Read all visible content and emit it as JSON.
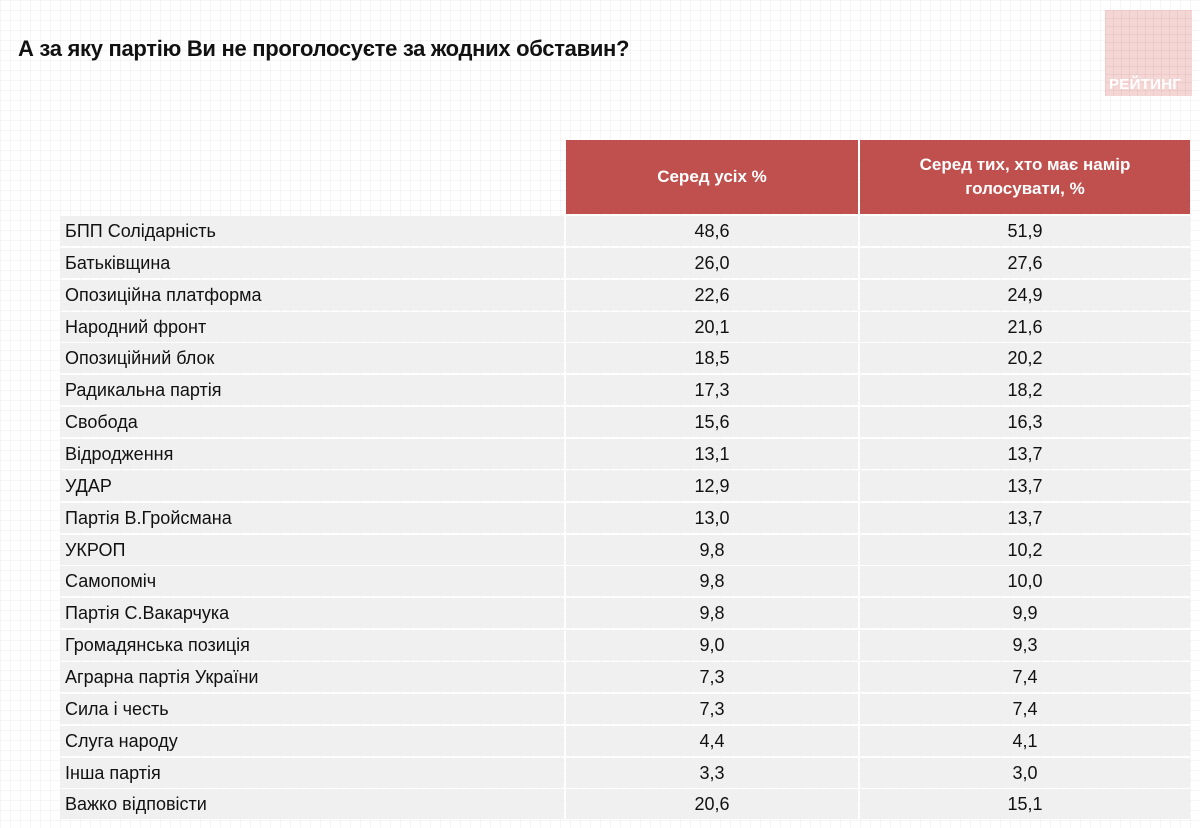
{
  "header": {
    "title": "А за яку партію Ви не проголосуєте за жодних обставин?",
    "logo_text": "РЕЙТИНГ"
  },
  "colors": {
    "header_bg": "#c0504d",
    "row_bg": "#f0f0f0",
    "logo_bg": "#f4d6d5"
  },
  "table": {
    "columns": [
      {
        "label": ""
      },
      {
        "label": "Серед усіх %"
      },
      {
        "label": "Серед тих, хто має намір голосувати, %"
      }
    ],
    "rows": [
      {
        "party": "БПП Солідарність",
        "all": "48,6",
        "voters": "51,9"
      },
      {
        "party": "Батьківщина",
        "all": "26,0",
        "voters": "27,6"
      },
      {
        "party": "Опозиційна платформа",
        "all": "22,6",
        "voters": "24,9"
      },
      {
        "party": "Народний фронт",
        "all": "20,1",
        "voters": "21,6"
      },
      {
        "party": "Опозиційний блок",
        "all": "18,5",
        "voters": "20,2"
      },
      {
        "party": "Радикальна партія",
        "all": "17,3",
        "voters": "18,2"
      },
      {
        "party": "Свобода",
        "all": "15,6",
        "voters": "16,3"
      },
      {
        "party": "Відродження",
        "all": "13,1",
        "voters": "13,7"
      },
      {
        "party": "УДАР",
        "all": "12,9",
        "voters": "13,7"
      },
      {
        "party": "Партія В.Гройсмана",
        "all": "13,0",
        "voters": "13,7"
      },
      {
        "party": "УКРОП",
        "all": "9,8",
        "voters": "10,2"
      },
      {
        "party": "Самопоміч",
        "all": "9,8",
        "voters": "10,0"
      },
      {
        "party": "Партія С.Вакарчука",
        "all": "9,8",
        "voters": "9,9"
      },
      {
        "party": "Громадянська позиція",
        "all": "9,0",
        "voters": "9,3"
      },
      {
        "party": "Аграрна партія України",
        "all": "7,3",
        "voters": "7,4"
      },
      {
        "party": "Сила і честь",
        "all": "7,3",
        "voters": "7,4"
      },
      {
        "party": "Слуга народу",
        "all": "4,4",
        "voters": "4,1"
      },
      {
        "party": "Інша партія",
        "all": "3,3",
        "voters": "3,0"
      },
      {
        "party": "Важко відповісти",
        "all": "20,6",
        "voters": "15,1"
      }
    ]
  }
}
